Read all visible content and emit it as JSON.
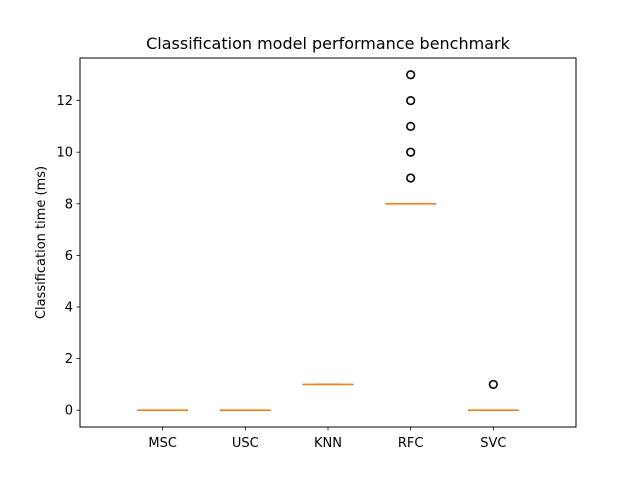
{
  "chart_data": {
    "type": "box",
    "title": "Classification model performance benchmark",
    "xlabel": "",
    "ylabel": "Classification time (ms)",
    "categories": [
      "MSC",
      "USC",
      "KNN",
      "RFC",
      "SVC"
    ],
    "ylim": [
      -0.65,
      13.65
    ],
    "yticks": [
      0,
      2,
      4,
      6,
      8,
      10,
      12
    ],
    "grid": false,
    "boxes": [
      {
        "category": "MSC",
        "q1": 0,
        "median": 0,
        "q3": 0,
        "whisker_low": 0,
        "whisker_high": 0,
        "outliers": []
      },
      {
        "category": "USC",
        "q1": 0,
        "median": 0,
        "q3": 0,
        "whisker_low": 0,
        "whisker_high": 0,
        "outliers": []
      },
      {
        "category": "KNN",
        "q1": 1,
        "median": 1,
        "q3": 1,
        "whisker_low": 1,
        "whisker_high": 1,
        "outliers": []
      },
      {
        "category": "RFC",
        "q1": 8,
        "median": 8,
        "q3": 8,
        "whisker_low": 8,
        "whisker_high": 8,
        "outliers": [
          9,
          10,
          11,
          12,
          13
        ]
      },
      {
        "category": "SVC",
        "q1": 0,
        "median": 0,
        "q3": 0,
        "whisker_low": 0,
        "whisker_high": 0,
        "outliers": [
          1
        ]
      }
    ],
    "colors": {
      "median": "#ff7f0e",
      "box": "#000000",
      "outlier_edge": "#000000",
      "background": "#ffffff"
    }
  }
}
